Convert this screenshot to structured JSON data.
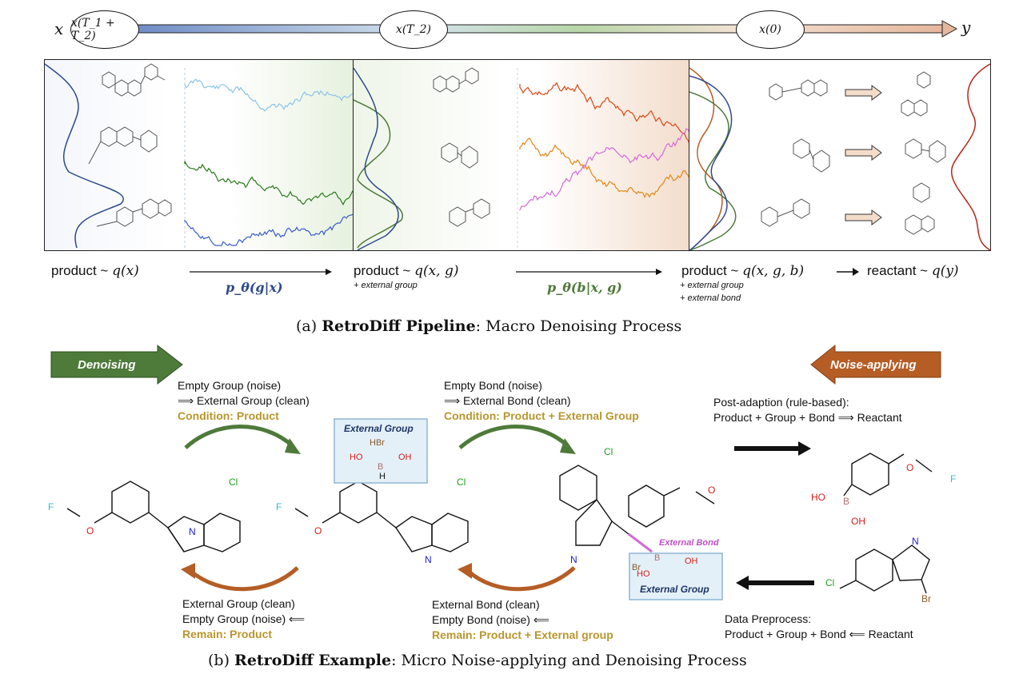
{
  "timeline": {
    "start_label": "x",
    "end_label": "y",
    "nodes": [
      "x(T_1 + T_2)",
      "x(T_2)",
      "x(0)"
    ]
  },
  "stage_labels": {
    "s1_prefix": "product ~ ",
    "s1_math": "q(x)",
    "arrow1": "p_θ(g|x)",
    "s2_prefix": "product ~ ",
    "s2_math": "q(x, g)",
    "s2_note": "+ external group",
    "arrow2": "p_θ(b|x, g)",
    "s3_prefix": "product ~ ",
    "s3_math": "q(x, g, b)",
    "s3_note1": "+ external group",
    "s3_note2": "+ external bond",
    "s4_prefix": "reactant ~ ",
    "s4_math": "q(y)"
  },
  "caption_a": {
    "prefix": "(a) ",
    "bold": "RetroDiff Pipeline",
    "rest": ": Macro Denoising Process"
  },
  "caption_b": {
    "prefix": "(b) ",
    "bold": "RetroDiff Example",
    "rest": ": Micro Noise-applying and Denoising Process"
  },
  "banners": {
    "left": "Denoising",
    "right": "Noise-applying"
  },
  "step_top_left": {
    "line1": "Empty Group (noise)",
    "line2": "⟹ External Group (clean)",
    "cond": "Condition: Product"
  },
  "step_top_mid": {
    "line1": "Empty Bond (noise)",
    "line2": "⟹ External Bond (clean)",
    "cond": "Condition: Product + External Group"
  },
  "step_top_right": {
    "line1": "Post-adaption (rule-based):",
    "line2": "Product + Group + Bond ⟹ Reactant"
  },
  "step_bot_left": {
    "line1": "External Group (clean)",
    "line2": "Empty Group (noise) ⟸",
    "cond": "Remain: Product"
  },
  "step_bot_mid": {
    "line1": "External Bond (clean)",
    "line2": "Empty Bond (noise) ⟸",
    "cond": "Remain: Product + External group"
  },
  "step_bot_right": {
    "line1": "Data Preprocess:",
    "line2": "Product + Group + Bond ⟸ Reactant"
  },
  "external_group_box": {
    "title": "External Group",
    "hbr": "HBr",
    "ho": "HO",
    "b": "B",
    "oh": "OH",
    "h": "H"
  },
  "external_group_box2": {
    "title": "External Group"
  },
  "external_bond_label": "External Bond",
  "atoms": {
    "f": "F",
    "o": "O",
    "cl": "Cl",
    "n": "N",
    "br": "Br",
    "b": "B",
    "ho": "HO",
    "oh": "OH"
  },
  "colors": {
    "green_arrow": "#4e7a3a",
    "brown_arrow": "#b55d25",
    "gold_text": "#b8962e",
    "box_fill": "#e3f0f8",
    "box_border": "#8fb6d3",
    "bond_pink": "#d46ad8",
    "blue_series": "#3b5cc8",
    "green_series": "#2a7a1c",
    "lightblue_series": "#8cc4e6",
    "orange_series": "#e08a18",
    "red_series": "#d84a1a",
    "violet_series": "#d46ad8"
  }
}
